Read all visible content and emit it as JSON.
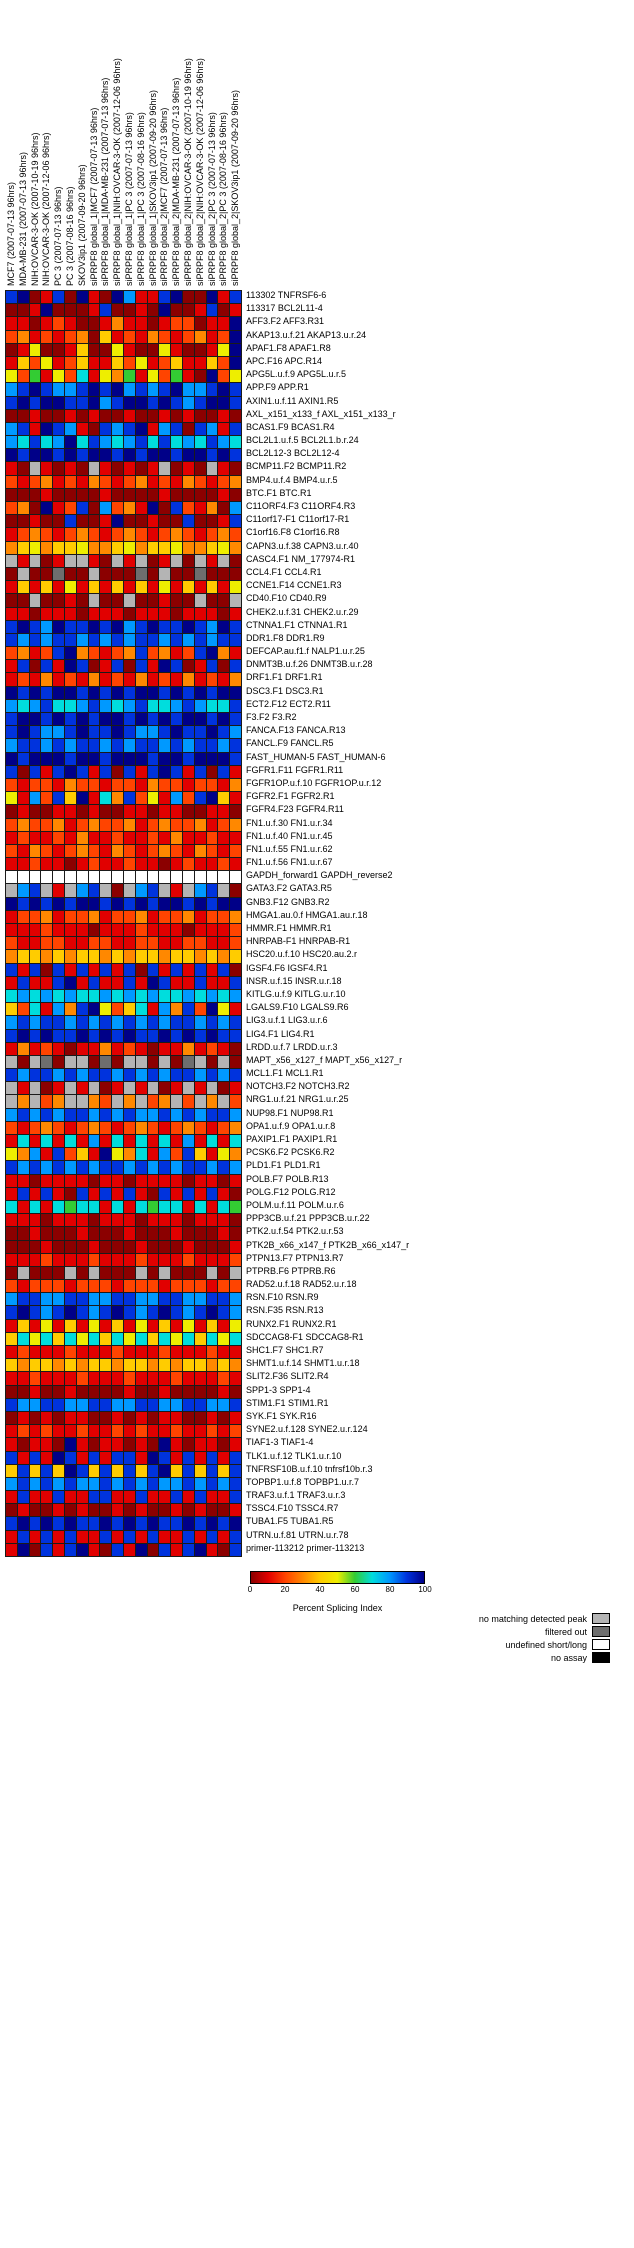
{
  "chart_data": {
    "type": "heatmap",
    "columns": [
      "MCF7 (2007-07-13 96hrs)",
      "MDA-MB-231 (2007-07-13 96hrs)",
      "NIH:OVCAR-3-OK (2007-10-19 96hrs)",
      "NIH:OVCAR-3-OK (2007-12-06 96hrs)",
      "PC 3 (2007-07-13 96hrs)",
      "PC 3 (2007-08-16 96hrs)",
      "SKOV3ip1 (2007-09-20 96hrs)",
      "siPRPF8 global_1|MCF7 (2007-07-13 96hrs)",
      "siPRPF8 global_1|MDA-MB-231 (2007-07-13 96hrs)",
      "siPRPF8 global_1|NIH:OVCAR-3-OK (2007-12-06 96hrs)",
      "siPRPF8 global_1|PC 3 (2007-07-13 96hrs)",
      "siPRPF8 global_1|PC 3 (2007-08-16 96hrs)",
      "siPRPF8 global_1|SKOV3ip1 (2007-09-20 96hrs)",
      "siPRPF8 global_2|MCF7 (2007-07-13 96hrs)",
      "siPRPF8 global_2|MDA-MB-231 (2007-07-13 96hrs)",
      "siPRPF8 global_2|NIH:OVCAR-3-OK (2007-10-19 96hrs)",
      "siPRPF8 global_2|NIH:OVCAR-3-OK (2007-12-06 96hrs)",
      "siPRPF8 global_2|PC 3 (2007-07-13 96hrs)",
      "siPRPF8 global_2|PC 3 (2007-08-16 96hrs)",
      "siPRPF8 global_2|SKOV3ip1 (2007-09-20 96hrs)"
    ],
    "rows": [
      "113302 TNFRSF6-6",
      "113317 BCL2L11-4",
      "AFF3.F2 AFF3.R31",
      "AKAP13.u.f.21 AKAP13.u.r.24",
      "APAF1.F8 APAF1.R8",
      "APC.F16 APC.R14",
      "APG5L.u.f.9 APG5L.u.r.5",
      "APP.F9 APP.R1",
      "AXIN1.u.f.11 AXIN1.R5",
      "AXL_x151_x133_f AXL_x151_x133_r",
      "BCAS1.F9 BCAS1.R4",
      "BCL2L1.u.f.5 BCL2L1.b.r.24",
      "BCL2L12-3 BCL2L12-4",
      "BCMP11.F2 BCMP11.R2",
      "BMP4.u.f.4 BMP4.u.r.5",
      "BTC.F1 BTC.R1",
      "C11ORF4.F3 C11ORF4.R3",
      "C11orf17-F1 C11orf17-R1",
      "C1orf16.F8 C1orf16.R8",
      "CAPN3.u.f.38 CAPN3.u.r.40",
      "CASC4.F1 NM_177974-R1",
      "CCL4.F1 CCL4.R1",
      "CCNE1.F14 CCNE1.R3",
      "CD40.F10 CD40.R9",
      "CHEK2.u.f.31 CHEK2.u.r.29",
      "CTNNA1.F1 CTNNA1.R1",
      "DDR1.F8 DDR1.R9",
      "DEFCAP.au.f1.f NALP1.u.r.25",
      "DNMT3B.u.f.26 DNMT3B.u.r.28",
      "DRF1.F1 DRF1.R1",
      "DSC3.F1 DSC3.R1",
      "ECT2.F12 ECT2.R11",
      "F3.F2 F3.R2",
      "FANCA.F13 FANCA.R13",
      "FANCL.F9 FANCL.R5",
      "FAST_HUMAN-5 FAST_HUMAN-6",
      "FGFR1.F11 FGFR1.R11",
      "FGFR1OP.u.f.10 FGFR1OP.u.r.12",
      "FGFR2.F1 FGFR2.R1",
      "FGFR4.F23 FGFR4.R11",
      "FN1.u.f.30 FN1.u.r.34",
      "FN1.u.f.40 FN1.u.r.45",
      "FN1.u.f.55 FN1.u.r.62",
      "FN1.u.f.56 FN1.u.r.67",
      "GAPDH_forward1 GAPDH_reverse2",
      "GATA3.F2 GATA3.R5",
      "GNB3.F12 GNB3.R2",
      "HMGA1.au.0.f HMGA1.au.r.18",
      "HMMR.F1 HMMR.R1",
      "HNRPAB-F1 HNRPAB-R1",
      "HSC20.u.f.10 HSC20.au.2.r",
      "IGSF4.F6 IGSF4.R1",
      "INSR.u.f.15 INSR.u.r.18",
      "KITLG.u.f.9 KITLG.u.r.10",
      "LGALS9.F10 LGALS9.R6",
      "LIG3.u.f.1 LIG3.u.r.6",
      "LIG4.F1 LIG4.R1",
      "LRDD.u.f.7 LRDD.u.r.3",
      "MAPT_x56_x127_f MAPT_x56_x127_r",
      "MCL1.F1 MCL1.R1",
      "NOTCH3.F2 NOTCH3.R2",
      "NRG1.u.f.21 NRG1.u.r.25",
      "NUP98.F1 NUP98.R1",
      "OPA1.u.f.9 OPA1.u.r.8",
      "PAXIP1.F1 PAXIP1.R1",
      "PCSK6.F2 PCSK6.R2",
      "PLD1.F1 PLD1.R1",
      "POLB.F7 POLB.R13",
      "POLG.F12 POLG.R12",
      "POLM.u.f.11 POLM.u.r.6",
      "PPP3CB.u.f.21 PPP3CB.u.r.22",
      "PTK2.u.f.54 PTK2.u.r.53",
      "PTK2B_x66_x147_f PTK2B_x66_x147_r",
      "PTPN13.F7 PTPN13.R7",
      "PTPRB.F6 PTPRB.R6",
      "RAD52.u.f.18 RAD52.u.r.18",
      "RSN.F10 RSN.R9",
      "RSN.F35 RSN.R13",
      "RUNX2.F1 RUNX2.R1",
      "SDCCAG8-F1 SDCCAG8-R1",
      "SHC1.F7 SHC1.R7",
      "SHMT1.u.f.14 SHMT1.u.r.18",
      "SLIT2.F36 SLIT2.R4",
      "SPP1-3 SPP1-4",
      "STIM1.F1 STIM1.R1",
      "SYK.F1 SYK.R16",
      "SYNE2.u.f.128 SYNE2.u.r.124",
      "TIAF1-3 TIAF1-4",
      "TLK1.u.f.12 TLK1.u.r.10",
      "TNFRSF10B.u.f.10 tnfrsf10b.r.3",
      "TOPBP1.u.f.8 TOPBP1.u.r.7",
      "TRAF3.u.f.1 TRAF3.u.r.3",
      "TSSC4.F10 TSSC4.R7",
      "TUBA1.F5 TUBA1.R5",
      "UTRN.u.f.81 UTRN.u.r.78",
      "primer-113212 primer-113213"
    ],
    "palette": {
      "0": "#8b0000",
      "1": "#e10000",
      "2": "#ff4400",
      "3": "#ff8800",
      "4": "#ffcc00",
      "5": "#eeee00",
      "6": "#33cc33",
      "7": "#00dddd",
      "8": "#0099ff",
      "9": "#0033dd",
      "A": "#000088",
      "G": "#b4b4b4",
      "F": "#6e6e6e",
      "W": "#ffffff",
      "B": "#000000"
    },
    "code_values": {
      "0": 0,
      "1": 10,
      "2": 20,
      "3": 30,
      "4": 40,
      "5": 50,
      "6": 60,
      "7": 65,
      "8": 75,
      "9": 85,
      "A": 95,
      "G": "no matching detected peak",
      "F": "filtered out",
      "W": "undefined short/long",
      "B": "no assay"
    },
    "cells": [
      "9A0190A10A8119A00A19",
      "001A000190010A001901",
      "1101210013110122011A",
      "2312123041213212312A",
      "0150014005100510015A",
      "1425124114251241142A",
      "52615271536152610A25",
      "89A9889A9A8989A889A9",
      "9A9AA99A89AA9A989AA9",
      "00100101001001010010",
      "891A9810989A18909819",
      "87978A79878979787987",
      "A9AA9A9AA9A9AA9AA9A9",
      "10G1010G10101G010G10",
      "21231213212312132123",
      "00010000100001000010",
      "230A12908231A0921308",
      "001009001A0010090019",
      "12321232123212321232",
      "34534453345344533453",
      "G1G01GG10G1G01G0G1G0",
      "0G00F00G000F0G00F000",
      "14141514141415141415",
      "00G0010G00G00100G00G",
      "11011101110111011101",
      "9A98A99A9A89A99A98A9",
      "98989989898998989899",
      "23129A32123923129A31",
      "19091A9019091A901909",
      "12131213121312131213",
      "A9A9AA9A9A9AA9A9A9AA",
      "87897789878977898779",
      "9AA9A9A9AA9A9A9AA9A9",
      "9A9889A99A9889A99A98",
      "89989899898998989989",
      "A9AAA9AA9AAA9AA9AAA9",
      "90919A9190919A919091",
      "21221322122132212213",
      "518294A1739251829A41",
      "01001101001101100110",
      "23223123223123223123",
      "12112131121121311211",
      "21321232132123213212",
      "11211012112110121121",
      "WWWWWWWWWWWWWWWWWWWW",
      "G89G1G89G0G89G1G89G0",
      "A9A9A9AA9A9A9AA9A9AA",
      "12231223122312231223",
      "11121110111211101112",
      "21122112211221122112",
      "34434344343443443434",
      "91909191919091919190",
      "19119A191191A9119119",
      "78787877878787787878",
      "4271839A524718392A51",
      "89899898989898998989",
      "9A9A99A9A9A99A9A9A99",
      "13121011312101131210",
      "G0GF0GG0F0GG0G0FG0G0",
      "98998989989898998989",
      "G1G01G1G01G1G01G1G01",
      "G3G23GG32G3G23G2G3G2",
      "89898998989889898998",
      "21232123212321232123",
      "17171718171717181717",
      "53819241A53718294153",
      "98989898998989899898",
      "11011110110111101101",
      "19191091919109191910",
      "71717677171767717176",
      "11101110111011101110",
      "00100010001000100010",
      "00010001000100010001",
      "11121112111211121112",
      "0G000G0G000G0G000G0G",
      "21222122212221222122",
      "89988998899889988998",
      "9A989A989A989A989A98",
      "14151415141514151415",
      "47574757475747574757",
      "12111211121112111211",
      "43443434434434344343",
      "11211121112111211121",
      "00100100001001000010",
      "98899889988998899889",
      "01010110010101100101",
      "12121121121211211212",
      "10110A1011010A101101",
      "9191A9191991A9191919",
      "49494A9494949A494949",
      "89898988989898898989",
      "19119119911911919119",
      "01001010010100101001",
      "9A9A9A99A9A9A99A9A9A",
      "19191911919191191919",
      "1A0919A1091A0919A109"
    ],
    "colorbar": {
      "label": "Percent Splicing Index",
      "ticks": [
        0,
        20,
        40,
        60,
        80,
        100
      ],
      "min": 0,
      "max": 100,
      "gradient": [
        "#8b0000",
        "#e10000",
        "#ff4400",
        "#ff8800",
        "#ffcc00",
        "#eeee00",
        "#33cc33",
        "#00dddd",
        "#0099ff",
        "#0033dd",
        "#000088"
      ]
    },
    "legend": [
      {
        "label": "no matching detected peak",
        "color": "#b4b4b4"
      },
      {
        "label": "filtered out",
        "color": "#6e6e6e"
      },
      {
        "label": "undefined short/long",
        "color": "#ffffff"
      },
      {
        "label": "no assay",
        "color": "#000000"
      }
    ]
  }
}
